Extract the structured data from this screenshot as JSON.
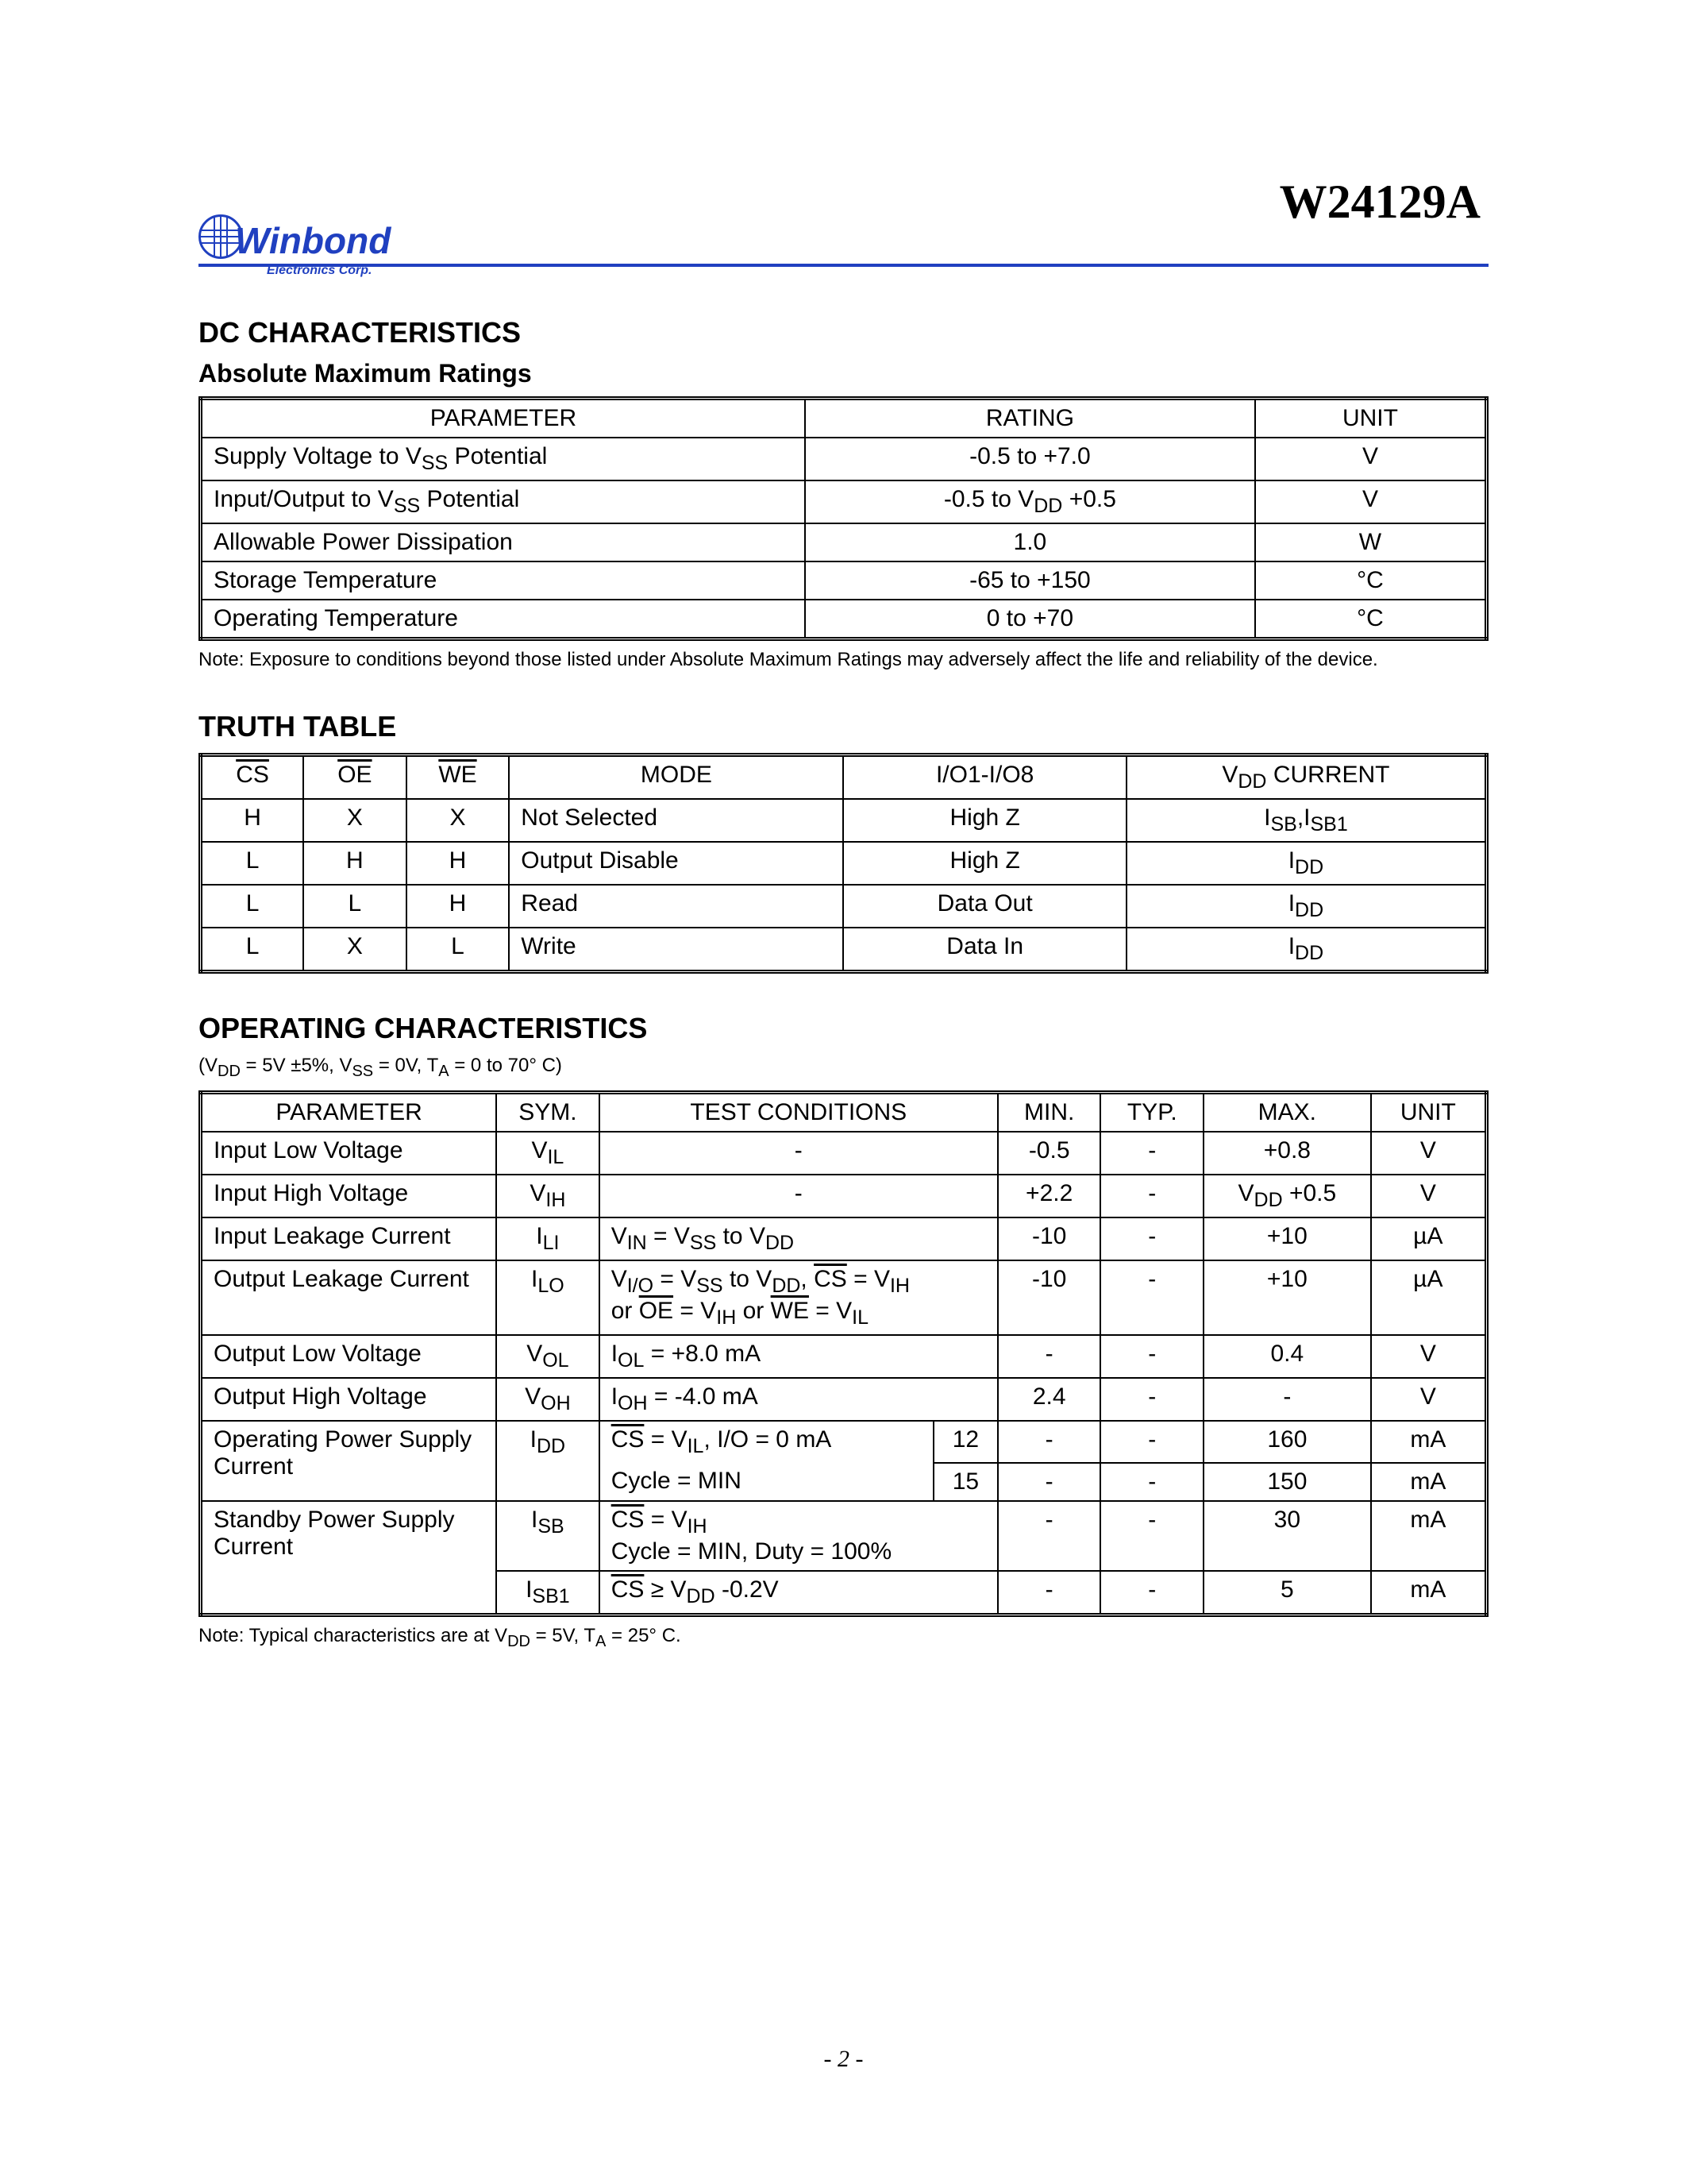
{
  "part_number": "W24129A",
  "logo": {
    "brand": "Winbond",
    "subtitle": "Electronics Corp."
  },
  "sections": {
    "dc": "DC CHARACTERISTICS",
    "amr": "Absolute Maximum Ratings",
    "truth": "TRUTH TABLE",
    "op": "OPERATING CHARACTERISTICS"
  },
  "amr_table": {
    "columns": [
      "PARAMETER",
      "RATING",
      "UNIT"
    ],
    "rows": [
      [
        "Supply Voltage to V<sub>SS</sub> Potential",
        "-0.5 to +7.0",
        "V"
      ],
      [
        "Input/Output to V<sub>SS</sub> Potential",
        "-0.5 to V<sub>DD</sub> +0.5",
        "V"
      ],
      [
        "Allowable Power Dissipation",
        "1.0",
        "W"
      ],
      [
        "Storage Temperature",
        "-65 to +150",
        "°C"
      ],
      [
        "Operating Temperature",
        "0 to +70",
        "°C"
      ]
    ],
    "note": "Note: Exposure to conditions beyond those listed under Absolute Maximum Ratings may adversely affect the life and reliability of the device."
  },
  "truth_table": {
    "columns": [
      "CS",
      "OE",
      "WE",
      "MODE",
      "I/O1-I/O8",
      "V<sub>DD</sub> CURRENT"
    ],
    "header_overline": [
      true,
      true,
      true,
      false,
      false,
      false
    ],
    "rows": [
      [
        "H",
        "X",
        "X",
        "Not Selected",
        "High Z",
        "I<sub>SB</sub>,I<sub>SB1</sub>"
      ],
      [
        "L",
        "H",
        "H",
        "Output Disable",
        "High Z",
        "I<sub>DD</sub>"
      ],
      [
        "L",
        "L",
        "H",
        "Read",
        "Data Out",
        "I<sub>DD</sub>"
      ],
      [
        "L",
        "X",
        "L",
        "Write",
        "Data In",
        "I<sub>DD</sub>"
      ]
    ]
  },
  "op_conditions": "(V<sub>DD</sub> = 5V ±5%, V<sub>SS</sub> = 0V, T<sub>A</sub> = 0 to 70° C)",
  "op_table": {
    "columns": [
      "PARAMETER",
      "SYM.",
      "TEST CONDITIONS",
      "MIN.",
      "TYP.",
      "MAX.",
      "UNIT"
    ],
    "rows": [
      {
        "param": "Input Low Voltage",
        "sym": "V<sub>IL</sub>",
        "cond": "-",
        "sub": "",
        "min": "-0.5",
        "typ": "-",
        "max": "+0.8",
        "unit": "V"
      },
      {
        "param": "Input High Voltage",
        "sym": "V<sub>IH</sub>",
        "cond": "-",
        "sub": "",
        "min": "+2.2",
        "typ": "-",
        "max": "V<sub>DD</sub> +0.5",
        "unit": "V"
      },
      {
        "param": "Input Leakage Current",
        "sym": "I<sub>LI</sub>",
        "cond": "V<sub>IN</sub> = V<sub>SS</sub> to V<sub>DD</sub>",
        "sub": "",
        "min": "-10",
        "typ": "-",
        "max": "+10",
        "unit": "µA"
      },
      {
        "param": "Output Leakage Current",
        "sym": "I<sub>LO</sub>",
        "cond": "V<sub>I/O</sub> = V<sub>SS</sub> to V<sub>DD</sub>, <span class=\"ov\">CS</span> = V<sub>IH</sub><br>or <span class=\"ov\">OE</span> = V<sub>IH</sub> or <span class=\"ov\">WE</span> = V<sub>IL</sub>",
        "sub": "",
        "min": "-10",
        "typ": "-",
        "max": "+10",
        "unit": "µA"
      },
      {
        "param": "Output Low Voltage",
        "sym": "V<sub>OL</sub>",
        "cond": "I<sub>OL</sub> = +8.0 mA",
        "sub": "",
        "min": "-",
        "typ": "-",
        "max": "0.4",
        "unit": "V"
      },
      {
        "param": "Output High Voltage",
        "sym": "V<sub>OH</sub>",
        "cond": "I<sub>OH</sub> = -4.0 mA",
        "sub": "",
        "min": "2.4",
        "typ": "-",
        "max": "-",
        "unit": "V"
      }
    ],
    "op_power": {
      "param": "Operating Power Supply Current",
      "sym": "I<sub>DD</sub>",
      "r1": {
        "cond": "<span class=\"ov\">CS</span> = V<sub>IL</sub>, I/O = 0 mA",
        "sub": "12",
        "min": "-",
        "typ": "-",
        "max": "160",
        "unit": "mA"
      },
      "r2": {
        "cond": "Cycle = MIN",
        "sub": "15",
        "min": "-",
        "typ": "-",
        "max": "150",
        "unit": "mA"
      }
    },
    "sb_power": {
      "param": "Standby Power Supply Current",
      "r1": {
        "sym": "I<sub>SB</sub>",
        "cond": "<span class=\"ov\">CS</span> = V<sub>IH</sub><br>Cycle = MIN, Duty = 100%",
        "min": "-",
        "typ": "-",
        "max": "30",
        "unit": "mA"
      },
      "r2": {
        "sym": "I<sub>SB1</sub>",
        "cond": "<span class=\"ov\">CS</span> ≥ V<sub>DD</sub> -0.2V",
        "min": "-",
        "typ": "-",
        "max": "5",
        "unit": "mA"
      }
    },
    "note": "Note: Typical characteristics are at V<sub>DD</sub> = 5V, T<sub>A</sub> = 25° C."
  },
  "page_number": "- 2 -",
  "colors": {
    "brand": "#2040c0",
    "text": "#000000",
    "background": "#ffffff",
    "border": "#000000"
  }
}
